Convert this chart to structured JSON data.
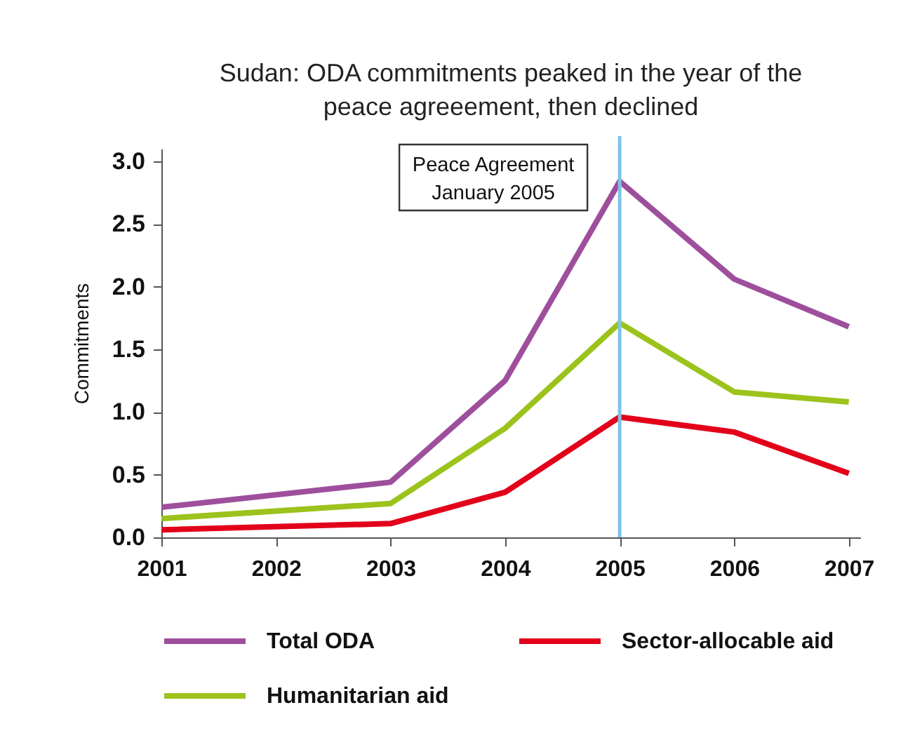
{
  "chart_data": {
    "type": "line",
    "title": "Sudan: ODA commitments peaked in the year of the peace agreeement, then declined",
    "ylabel": "Commitments",
    "x": [
      2001,
      2003,
      2004,
      2005,
      2006,
      2007
    ],
    "series": [
      {
        "name": "Total ODA",
        "color": "#9e4f9c",
        "values": [
          0.24,
          0.44,
          1.25,
          2.84,
          2.06,
          1.68
        ]
      },
      {
        "name": "Humanitarian aid",
        "color": "#9bc31c",
        "values": [
          0.15,
          0.27,
          0.87,
          1.71,
          1.16,
          1.08
        ]
      },
      {
        "name": "Sector-allocable aid",
        "color": "#e2001a",
        "values": [
          0.06,
          0.11,
          0.36,
          0.96,
          0.84,
          0.51
        ]
      }
    ],
    "xlim": [
      2001,
      2007.1
    ],
    "xticks": [
      2001,
      2002,
      2003,
      2004,
      2005,
      2006,
      2007
    ],
    "ylim": [
      0,
      3.1
    ],
    "yticks": [
      {
        "value": 0,
        "label": "0.0"
      },
      0.5,
      {
        "value": 1,
        "label": "1.0"
      },
      1.5,
      {
        "value": 2,
        "label": "2.0"
      },
      2.5,
      {
        "value": 3,
        "label": "3.0"
      }
    ],
    "ref_lines": [
      {
        "axis": "x",
        "value": 2005,
        "label": "Peace Agreement\nJanuary 2005",
        "color": "#7fc4e6"
      }
    ],
    "grid": false,
    "legend": "bottom"
  }
}
